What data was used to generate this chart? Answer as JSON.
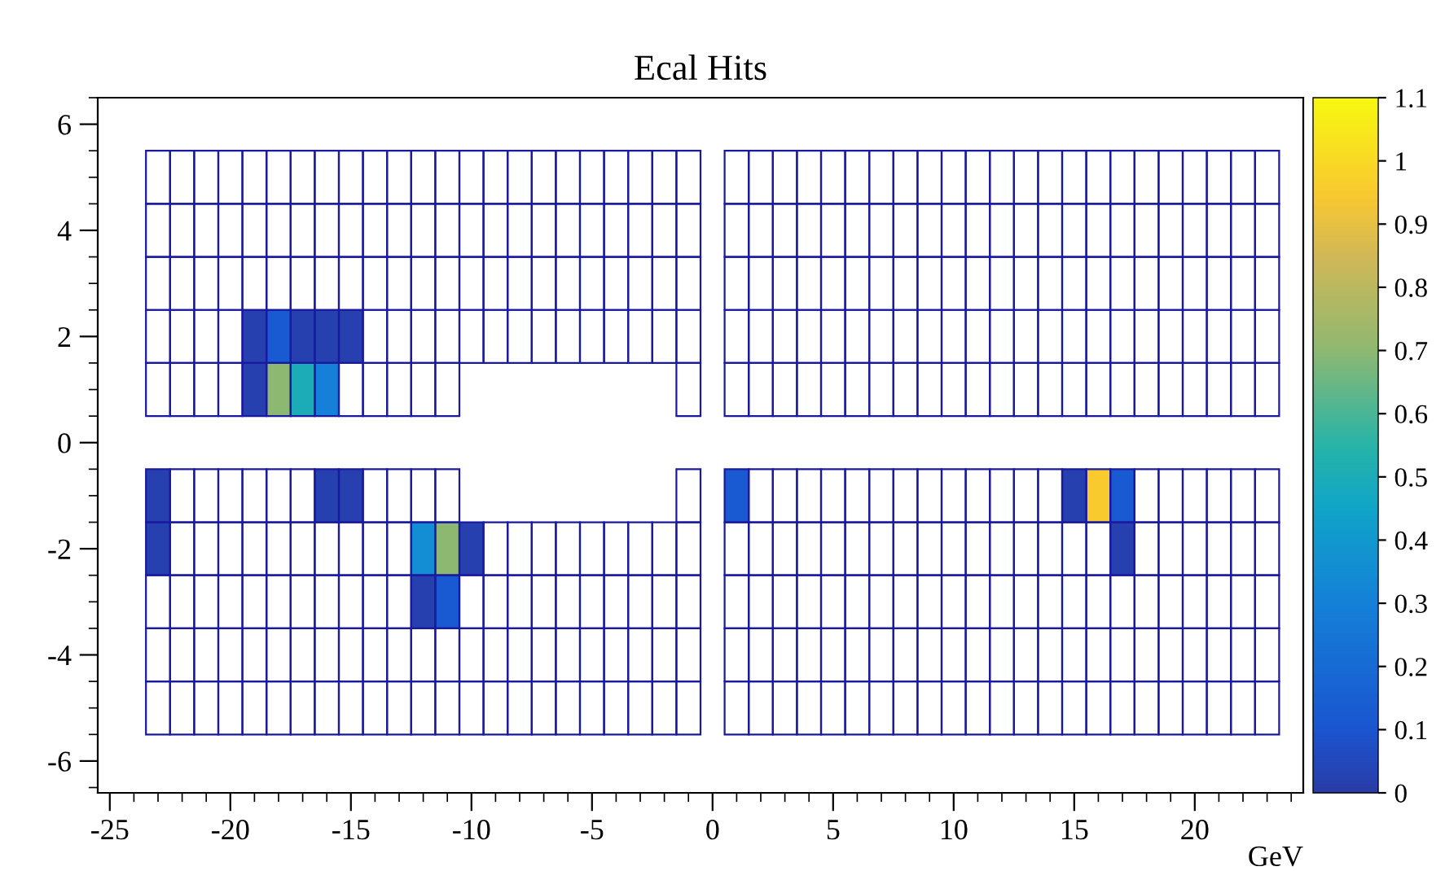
{
  "chart_data": {
    "type": "heatmap",
    "title": "Ecal Hits",
    "xlabel": "GeV",
    "x": [
      -23,
      -22,
      -21,
      -20,
      -19,
      -18,
      -17,
      -16,
      -15,
      -14,
      -13,
      -12,
      -11,
      -10,
      -9,
      -8,
      -7,
      -6,
      -5,
      -4,
      -3,
      -2,
      -1,
      1,
      2,
      3,
      4,
      5,
      6,
      7,
      8,
      9,
      10,
      11,
      12,
      13,
      14,
      15,
      16,
      17,
      18,
      19,
      20,
      21,
      22,
      23
    ],
    "y": [
      2,
      1,
      -1,
      -2,
      -3
    ],
    "cells": [
      [
        null,
        null,
        null,
        null,
        0.02,
        0.12,
        0.02,
        0.02,
        0.02,
        null,
        null,
        null,
        null,
        null,
        null,
        null,
        null,
        null,
        null,
        null,
        null,
        null,
        null,
        null,
        null,
        null,
        null,
        null,
        null,
        null,
        null,
        null,
        null,
        null,
        null,
        null,
        null,
        null,
        null,
        null,
        null,
        null,
        null,
        null,
        null,
        null
      ],
      [
        null,
        null,
        null,
        null,
        0.02,
        0.7,
        0.5,
        0.3,
        null,
        null,
        null,
        null,
        null,
        null,
        null,
        null,
        null,
        null,
        null,
        null,
        null,
        null,
        null,
        null,
        null,
        null,
        null,
        null,
        null,
        null,
        null,
        null,
        null,
        null,
        null,
        null,
        null,
        null,
        null,
        null,
        null,
        null,
        null,
        null,
        null,
        null
      ],
      [
        0.02,
        null,
        null,
        null,
        null,
        null,
        null,
        0.02,
        0.02,
        null,
        null,
        null,
        null,
        null,
        null,
        null,
        null,
        null,
        null,
        null,
        null,
        null,
        null,
        0.12,
        null,
        null,
        null,
        null,
        null,
        null,
        null,
        null,
        null,
        null,
        null,
        null,
        null,
        0.02,
        0.95,
        0.12,
        null,
        null,
        null,
        null,
        null,
        null
      ],
      [
        0.02,
        null,
        null,
        null,
        null,
        null,
        null,
        null,
        null,
        null,
        null,
        0.35,
        0.7,
        0.02,
        null,
        null,
        null,
        null,
        null,
        null,
        null,
        null,
        null,
        null,
        null,
        null,
        null,
        null,
        null,
        null,
        null,
        null,
        null,
        null,
        null,
        null,
        null,
        null,
        null,
        0.02,
        null,
        null,
        null,
        null,
        null,
        null
      ],
      [
        null,
        null,
        null,
        null,
        null,
        null,
        null,
        null,
        null,
        null,
        null,
        0.02,
        0.12,
        null,
        null,
        null,
        null,
        null,
        null,
        null,
        null,
        null,
        null,
        null,
        null,
        null,
        null,
        null,
        null,
        null,
        null,
        null,
        null,
        null,
        null,
        null,
        null,
        null,
        null,
        null,
        null,
        null,
        null,
        null,
        null,
        null
      ]
    ],
    "xlim": [
      -25.5,
      24.5
    ],
    "ylim": [
      -6.6,
      6.5
    ],
    "xticks": [
      -25,
      -20,
      -15,
      -10,
      -5,
      0,
      5,
      10,
      15,
      20
    ],
    "yticks": [
      -6,
      -4,
      -2,
      0,
      2,
      4,
      6
    ],
    "clim": [
      0,
      1.1
    ],
    "cticks": [
      0,
      0.1,
      0.2,
      0.3,
      0.4,
      0.5,
      0.6,
      0.7,
      0.8,
      0.9,
      1,
      1.1
    ]
  }
}
